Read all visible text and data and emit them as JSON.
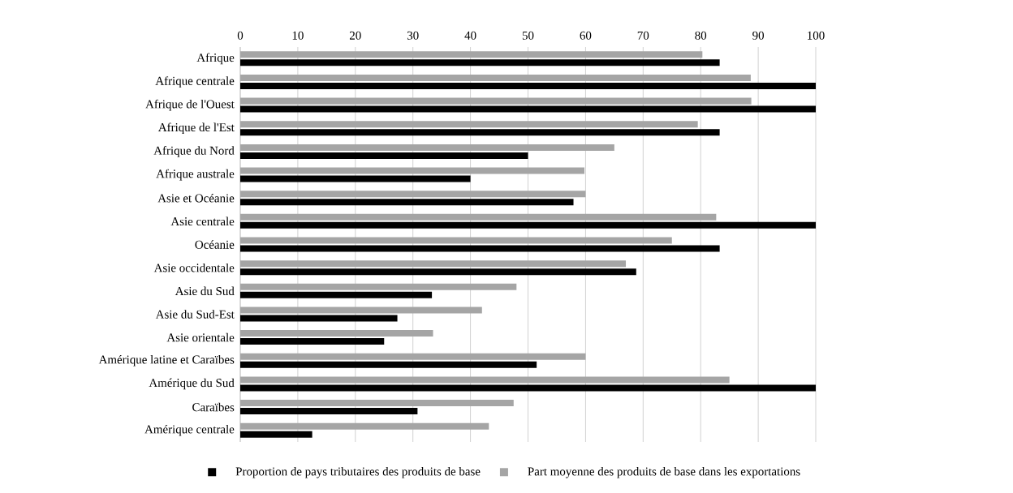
{
  "chart_data": {
    "type": "bar",
    "orientation": "horizontal",
    "categories": [
      "Afrique",
      "Afrique centrale",
      "Afrique de l'Ouest",
      "Afrique de l'Est",
      "Afrique du Nord",
      "Afrique australe",
      "Asie et Océanie",
      "Asie centrale",
      "Océanie",
      "Asie occidentale",
      "Asie du Sud",
      "Asie du Sud-Est",
      "Asie orientale",
      "Amérique latine et Caraïbes",
      "Amérique du Sud",
      "Caraïbes",
      "Amérique centrale"
    ],
    "series": [
      {
        "name": "Proportion de pays tributaires des produits de base",
        "color": "#000000",
        "values": [
          83.3,
          100,
          100,
          83.3,
          50,
          40,
          57.9,
          100,
          83.3,
          68.8,
          33.3,
          27.3,
          25,
          51.5,
          100,
          30.8,
          12.5
        ]
      },
      {
        "name": "Part moyenne des produits de base dans les exportations",
        "color": "#a5a5a5",
        "values": [
          80.3,
          88.7,
          88.8,
          79.5,
          65,
          59.8,
          60,
          82.7,
          75,
          67,
          48,
          42,
          33.5,
          60,
          85,
          47.5,
          43.2
        ]
      }
    ],
    "xlim": [
      0,
      100
    ],
    "xticks": [
      0,
      10,
      20,
      30,
      40,
      50,
      60,
      70,
      80,
      90,
      100
    ],
    "grid": "x",
    "legend": "bottom"
  }
}
